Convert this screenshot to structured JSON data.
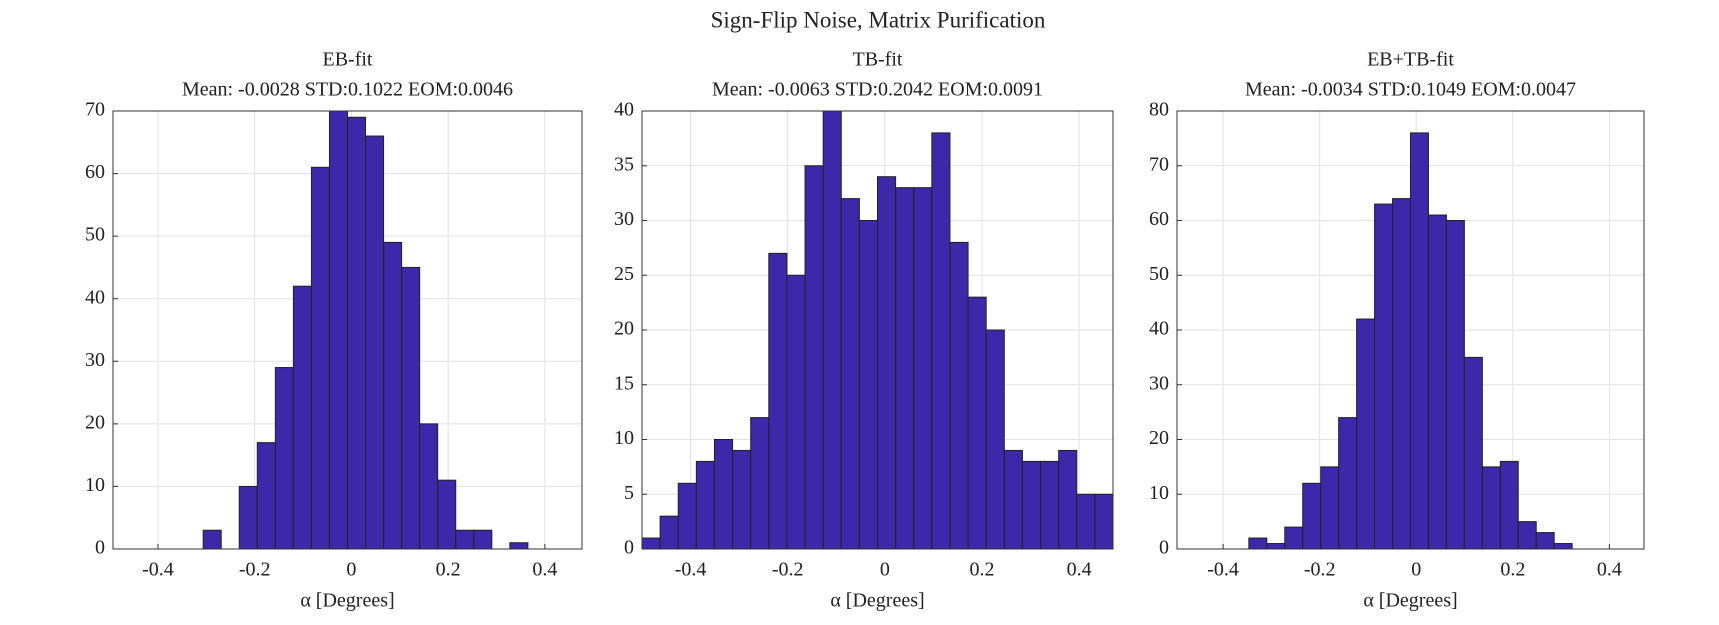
{
  "title": "Sign-Flip Noise, Matrix Purification",
  "chart_data": [
    {
      "type": "histogram",
      "title": "EB-fit",
      "subtitle": "Mean: -0.0028 STD:0.1022 EOM:0.0046",
      "xlabel": "α [Degrees]",
      "bins": [
        -0.493,
        -0.4557,
        -0.4184,
        -0.3811,
        -0.3438,
        -0.3065,
        -0.2692,
        -0.2319,
        -0.1946,
        -0.1573,
        -0.12,
        -0.0827,
        -0.0454,
        -0.0081,
        0.0292,
        0.0665,
        0.1038,
        0.1411,
        0.1784,
        0.2157,
        0.253,
        0.2903,
        0.3276,
        0.3649,
        0.4022,
        0.4395,
        0.4768
      ],
      "values": [
        0,
        0,
        0,
        0,
        0,
        3,
        0,
        10,
        17,
        29,
        42,
        61,
        70,
        69,
        66,
        49,
        45,
        20,
        11,
        3,
        3,
        0,
        1,
        0,
        0,
        0
      ],
      "color": "#3c28a8",
      "xlim": [
        -0.493,
        0.4768
      ],
      "ylim": [
        0,
        70
      ],
      "xticks": [
        -0.4,
        -0.2,
        0,
        0.2,
        0.4
      ],
      "yticks": [
        0,
        10,
        20,
        30,
        40,
        50,
        60,
        70
      ],
      "grid": true
    },
    {
      "type": "histogram",
      "title": "TB-fit",
      "subtitle": "Mean: -0.0063 STD:0.2042 EOM:0.0091",
      "xlabel": "α [Degrees]",
      "bins": [
        -0.5,
        -0.4627,
        -0.4254,
        -0.3881,
        -0.3508,
        -0.3135,
        -0.2762,
        -0.2389,
        -0.2016,
        -0.1643,
        -0.127,
        -0.0897,
        -0.0524,
        -0.0151,
        0.0222,
        0.0595,
        0.0968,
        0.1341,
        0.1714,
        0.2087,
        0.246,
        0.2833,
        0.3206,
        0.3579,
        0.3952,
        0.4325,
        0.4698
      ],
      "values": [
        1,
        3,
        6,
        8,
        10,
        9,
        12,
        27,
        25,
        35,
        40,
        32,
        30,
        34,
        33,
        33,
        38,
        28,
        23,
        20,
        9,
        8,
        8,
        9,
        5,
        5
      ],
      "color": "#3c28a8",
      "xlim": [
        -0.5,
        0.4698
      ],
      "ylim": [
        0,
        40
      ],
      "xticks": [
        -0.4,
        -0.2,
        0,
        0.2,
        0.4
      ],
      "yticks": [
        0,
        5,
        10,
        15,
        20,
        25,
        30,
        35,
        40
      ],
      "grid": true
    },
    {
      "type": "histogram",
      "title": "EB+TB-fit",
      "subtitle": "Mean: -0.0034 STD:0.1049 EOM:0.0047",
      "xlabel": "α [Degrees]",
      "bins": [
        -0.4955,
        -0.4583,
        -0.4211,
        -0.3839,
        -0.3467,
        -0.3095,
        -0.2723,
        -0.2351,
        -0.1979,
        -0.1607,
        -0.1235,
        -0.0863,
        -0.0491,
        -0.0119,
        0.0253,
        0.0625,
        0.0997,
        0.1369,
        0.1741,
        0.2113,
        0.2485,
        0.2857,
        0.3229,
        0.3601,
        0.3973,
        0.4345,
        0.4717
      ],
      "values": [
        0,
        0,
        0,
        0,
        2,
        1,
        4,
        12,
        15,
        24,
        42,
        63,
        64,
        76,
        61,
        60,
        35,
        15,
        16,
        5,
        3,
        1,
        0,
        0,
        0,
        0
      ],
      "color": "#3c28a8",
      "xlim": [
        -0.4955,
        0.4717
      ],
      "ylim": [
        0,
        80
      ],
      "xticks": [
        -0.4,
        -0.2,
        0,
        0.2,
        0.4
      ],
      "yticks": [
        0,
        10,
        20,
        30,
        40,
        50,
        60,
        70,
        80
      ],
      "grid": true
    }
  ]
}
